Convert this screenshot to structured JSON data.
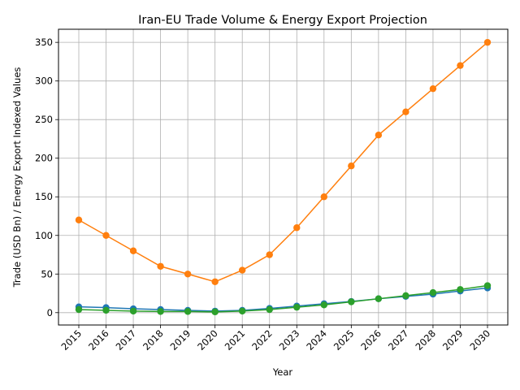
{
  "chart_data": {
    "type": "line",
    "title": "Iran-EU Trade Volume & Energy Export Projection",
    "xlabel": "Year",
    "ylabel": "Trade (USD Bn) / Energy Export Indexed Values",
    "categories": [
      "2015",
      "2016",
      "2017",
      "2018",
      "2019",
      "2020",
      "2021",
      "2022",
      "2023",
      "2024",
      "2025",
      "2026",
      "2027",
      "2028",
      "2029",
      "2030"
    ],
    "ylim": [
      -16,
      367
    ],
    "yticks": [
      0,
      50,
      100,
      150,
      200,
      250,
      300,
      350
    ],
    "grid": true,
    "series": [
      {
        "color": "#1f77b4",
        "values": [
          7.5,
          6.5,
          5,
          4,
          3,
          2,
          3,
          5.5,
          8.5,
          11.5,
          14.5,
          18,
          21,
          24,
          28,
          32
        ]
      },
      {
        "color": "#ff7f0e",
        "values": [
          120,
          100,
          80,
          60,
          50,
          40,
          55,
          75,
          110,
          150,
          190,
          230,
          260,
          290,
          320,
          350
        ]
      },
      {
        "color": "#2ca02c",
        "values": [
          4,
          3,
          2,
          1.5,
          1.5,
          1,
          2,
          4,
          7,
          10,
          14,
          18,
          22,
          26,
          30,
          35
        ]
      }
    ]
  }
}
